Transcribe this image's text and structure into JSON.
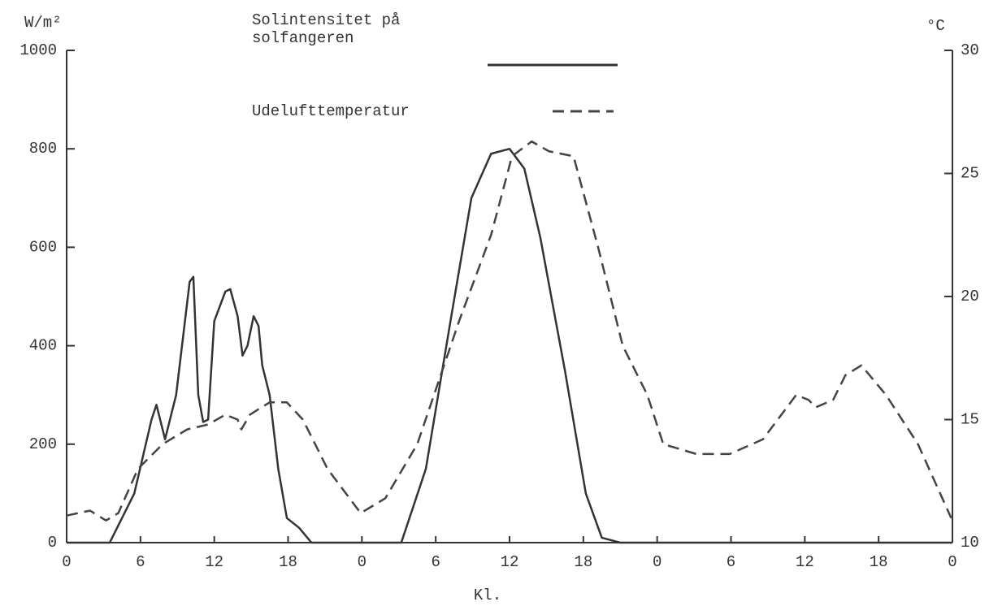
{
  "chart_data": {
    "type": "line",
    "y_label": "W/m²",
    "y2_label": "°C",
    "x_label": "Kl.",
    "xlim": [
      0,
      72
    ],
    "xticks": [
      0,
      6,
      12,
      18,
      {
        "value": 24,
        "label": "0"
      },
      {
        "value": 30,
        "label": "6"
      },
      {
        "value": 36,
        "label": "12"
      },
      {
        "value": 42,
        "label": "18"
      },
      {
        "value": 48,
        "label": "0"
      },
      {
        "value": 54,
        "label": "6"
      },
      {
        "value": 60,
        "label": "12"
      },
      {
        "value": 66,
        "label": "18"
      },
      {
        "value": 72,
        "label": "0"
      }
    ],
    "ylim": [
      0,
      1000
    ],
    "yticks": [
      0,
      200,
      400,
      600,
      800,
      1000
    ],
    "y2lim": [
      10,
      30
    ],
    "y2ticks": [
      10,
      15,
      20,
      25,
      30
    ],
    "series": [
      {
        "name": "Solintensitet på solfangeren",
        "color": "#333333",
        "dash": "solid",
        "x": [
          0,
          3.5,
          5.5,
          6.9,
          7.3,
          8,
          8.9,
          10,
          10.3,
          10.7,
          11.1,
          11.5,
          12,
          12.9,
          13.3,
          13.9,
          14.3,
          14.7,
          15.2,
          15.6,
          15.9,
          16.5,
          17.2,
          17.9,
          18.9,
          19.9,
          27.2,
          29.2,
          31.2,
          32.9,
          34.5,
          36,
          37.2,
          38.5,
          40.5,
          42.2,
          43.5,
          45,
          72
        ],
        "values": [
          0,
          0,
          100,
          250,
          280,
          210,
          300,
          530,
          540,
          300,
          245,
          250,
          450,
          510,
          515,
          460,
          380,
          400,
          460,
          440,
          360,
          300,
          150,
          50,
          30,
          0,
          0,
          150,
          450,
          700,
          790,
          800,
          760,
          620,
          350,
          100,
          10,
          0,
          0
        ]
      },
      {
        "name": "Udelufttemperatur",
        "color": "#444444",
        "dash": "dashed",
        "axis": "y2",
        "x": [
          0,
          1.9,
          3.2,
          4.2,
          5.8,
          7.8,
          9.8,
          11.5,
          12.9,
          13.9,
          14.2,
          14.9,
          16.5,
          17.9,
          19.2,
          21.2,
          23.9,
          25.9,
          28.5,
          31.9,
          34.5,
          36.2,
          37.8,
          39.2,
          41.2,
          43.2,
          45.2,
          47.2,
          48.5,
          51.2,
          53.9,
          56.6,
          59.3,
          60.3,
          60.9,
          62.3,
          63.3,
          64.6,
          66.6,
          69.2,
          71.9
        ],
        "values": [
          11.1,
          11.3,
          10.9,
          11.2,
          13,
          14,
          14.6,
          14.8,
          15.2,
          15,
          14.6,
          15.2,
          15.7,
          15.7,
          15,
          13,
          11.2,
          11.8,
          14,
          19,
          22.5,
          25.7,
          26.3,
          25.9,
          25.7,
          22,
          18,
          16,
          14,
          13.6,
          13.6,
          14.2,
          16,
          15.8,
          15.5,
          15.8,
          16.8,
          17.2,
          16,
          14,
          11
        ]
      }
    ]
  }
}
